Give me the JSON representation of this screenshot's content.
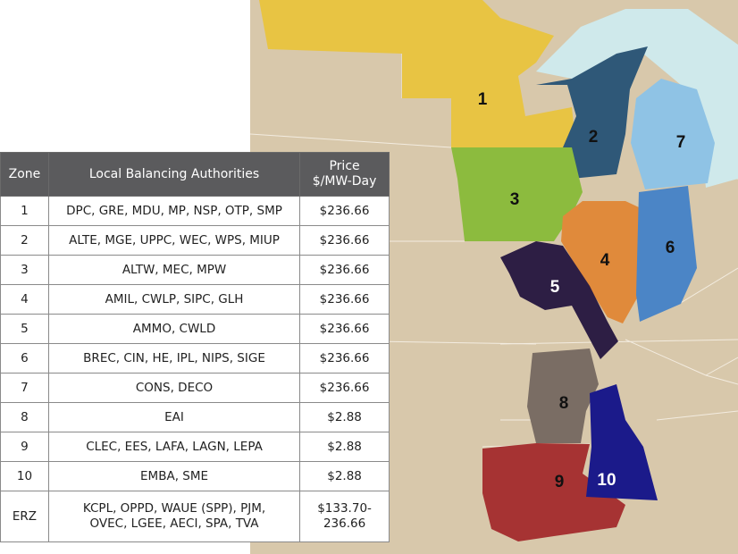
{
  "table": {
    "headers": {
      "zone": "Zone",
      "lba": "Local Balancing Authorities",
      "price_line1": "Price",
      "price_line2": "$/MW-Day"
    },
    "rows": [
      {
        "zone": "1",
        "lba": "DPC, GRE, MDU, MP, NSP, OTP, SMP",
        "price": "$236.66"
      },
      {
        "zone": "2",
        "lba": "ALTE, MGE, UPPC, WEC, WPS, MIUP",
        "price": "$236.66"
      },
      {
        "zone": "3",
        "lba": "ALTW, MEC, MPW",
        "price": "$236.66"
      },
      {
        "zone": "4",
        "lba": "AMIL, CWLP, SIPC, GLH",
        "price": "$236.66"
      },
      {
        "zone": "5",
        "lba": "AMMO, CWLD",
        "price": "$236.66"
      },
      {
        "zone": "6",
        "lba": "BREC, CIN, HE, IPL, NIPS, SIGE",
        "price": "$236.66"
      },
      {
        "zone": "7",
        "lba": "CONS, DECO",
        "price": "$236.66"
      },
      {
        "zone": "8",
        "lba": "EAI",
        "price": "$2.88"
      },
      {
        "zone": "9",
        "lba": "CLEC, EES, LAFA, LAGN, LEPA",
        "price": "$2.88"
      },
      {
        "zone": "10",
        "lba": "EMBA, SME",
        "price": "$2.88"
      }
    ],
    "erz": {
      "zone": "ERZ",
      "lba_line1": "KCPL, OPPD, WAUE (SPP), PJM,",
      "lba_line2": "OVEC, LGEE, AECI, SPA, TVA",
      "price_line1": "$133.70-",
      "price_line2": "236.66"
    }
  },
  "map": {
    "zones": [
      {
        "label": "1",
        "color": "#e8c443"
      },
      {
        "label": "2",
        "color": "#2f5878"
      },
      {
        "label": "3",
        "color": "#8cbb3e"
      },
      {
        "label": "4",
        "color": "#e08a3b"
      },
      {
        "label": "5",
        "color": "#2d1e44"
      },
      {
        "label": "6",
        "color": "#4b85c6"
      },
      {
        "label": "7",
        "color": "#8fc3e5"
      },
      {
        "label": "8",
        "color": "#7a6d64"
      },
      {
        "label": "9",
        "color": "#a63333"
      },
      {
        "label": "10",
        "color": "#1b1a8a"
      }
    ],
    "land_color": "#d8c8ab",
    "water_color": "#cfe9eb"
  }
}
